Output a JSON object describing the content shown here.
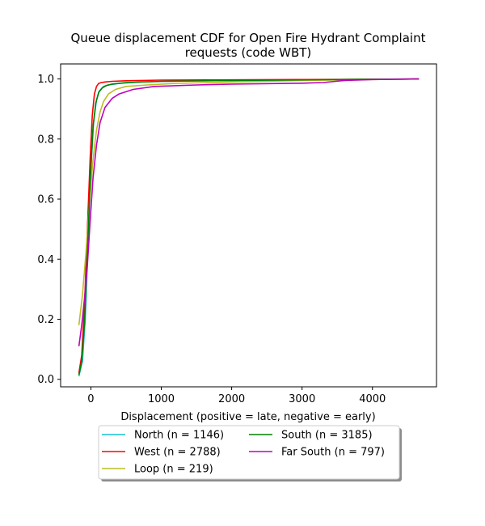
{
  "chart_data": {
    "type": "line",
    "title": "Queue displacement CDF for Open Fire Hydrant Complaint requests (code WBT)",
    "title_lines": [
      "Queue displacement CDF for Open Fire Hydrant Complaint",
      "requests (code WBT)"
    ],
    "xlabel": "Displacement (positive = late, negative = early)",
    "ylabel": "",
    "xlim": [
      -430,
      4910
    ],
    "ylim": [
      -0.025,
      1.05
    ],
    "xticks": [
      0,
      1000,
      2000,
      3000,
      4000
    ],
    "xtick_labels": [
      "0",
      "1000",
      "2000",
      "3000",
      "4000"
    ],
    "yticks": [
      0.0,
      0.2,
      0.4,
      0.6,
      0.8,
      1.0
    ],
    "ytick_labels": [
      "0.0",
      "0.2",
      "0.4",
      "0.6",
      "0.8",
      "1.0"
    ],
    "grid": false,
    "legend_position": "below plot, center",
    "legend_columns": 2,
    "series": [
      {
        "name": "North (n = 1146)",
        "color": "#17becf",
        "x": [
          -170,
          -120,
          -80,
          -40,
          0,
          40,
          80,
          120,
          180,
          250,
          400,
          700,
          1200,
          2000,
          3000,
          4000,
          4660
        ],
        "y": [
          0.01,
          0.06,
          0.2,
          0.45,
          0.7,
          0.86,
          0.93,
          0.96,
          0.975,
          0.98,
          0.985,
          0.99,
          0.993,
          0.995,
          0.997,
          0.999,
          1.0
        ]
      },
      {
        "name": "West (n = 2788)",
        "color": "#ff0000",
        "x": [
          -170,
          -130,
          -90,
          -50,
          -10,
          20,
          50,
          80,
          110,
          150,
          200,
          300,
          500,
          1000,
          2000,
          3000,
          4000,
          4660
        ],
        "y": [
          0.02,
          0.08,
          0.25,
          0.5,
          0.74,
          0.88,
          0.95,
          0.975,
          0.985,
          0.988,
          0.99,
          0.992,
          0.994,
          0.996,
          0.997,
          0.998,
          0.999,
          1.0
        ]
      },
      {
        "name": "Loop (n = 219)",
        "color": "#bcbd22",
        "x": [
          -170,
          -120,
          -70,
          -20,
          30,
          80,
          130,
          180,
          250,
          350,
          500,
          800,
          1200,
          2000,
          3000,
          4000,
          4660
        ],
        "y": [
          0.18,
          0.28,
          0.42,
          0.59,
          0.73,
          0.83,
          0.89,
          0.925,
          0.95,
          0.965,
          0.975,
          0.98,
          0.985,
          0.99,
          0.995,
          0.998,
          1.0
        ]
      },
      {
        "name": "South (n = 3185)",
        "color": "#008000",
        "x": [
          -170,
          -130,
          -90,
          -50,
          -10,
          30,
          70,
          110,
          160,
          220,
          300,
          500,
          1000,
          2000,
          3000,
          4000,
          4660
        ],
        "y": [
          0.015,
          0.06,
          0.19,
          0.42,
          0.66,
          0.84,
          0.92,
          0.955,
          0.97,
          0.978,
          0.983,
          0.988,
          0.992,
          0.995,
          0.997,
          0.999,
          1.0
        ]
      },
      {
        "name": "Far South (n = 797)",
        "color": "#bf00bf",
        "x": [
          -170,
          -130,
          -90,
          -50,
          -10,
          30,
          80,
          130,
          200,
          300,
          400,
          600,
          900,
          1500,
          2000,
          3000,
          3300,
          3600,
          4000,
          4660
        ],
        "y": [
          0.11,
          0.18,
          0.27,
          0.38,
          0.53,
          0.67,
          0.78,
          0.855,
          0.905,
          0.935,
          0.95,
          0.965,
          0.975,
          0.98,
          0.983,
          0.986,
          0.988,
          0.995,
          0.998,
          1.0
        ]
      }
    ]
  }
}
